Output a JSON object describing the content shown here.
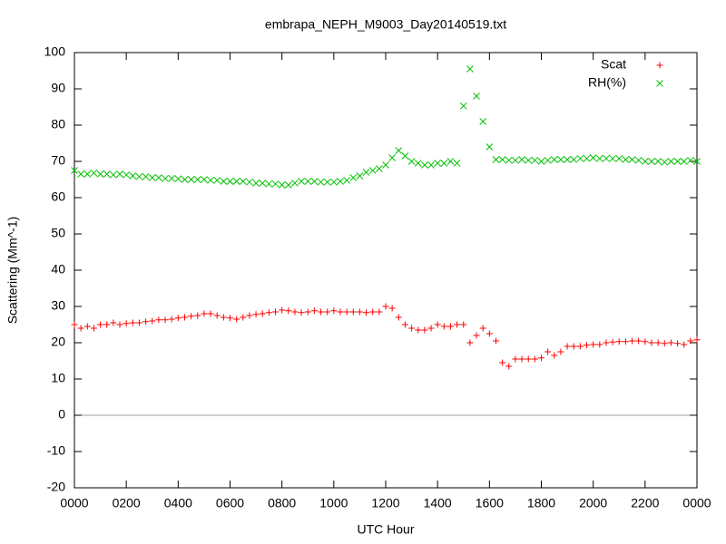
{
  "chart_data": {
    "type": "scatter",
    "title": "embrapa_NEPH_M9003_Day20140519.txt",
    "x_label": "UTC Hour",
    "y_label": "Scattering (Mm^-1)",
    "xlim": [
      0,
      24
    ],
    "ylim": [
      -20,
      100
    ],
    "xticks": [
      {
        "value": 0,
        "label": "0000"
      },
      {
        "value": 2,
        "label": "0200"
      },
      {
        "value": 4,
        "label": "0400"
      },
      {
        "value": 6,
        "label": "0600"
      },
      {
        "value": 8,
        "label": "0800"
      },
      {
        "value": 10,
        "label": "1000"
      },
      {
        "value": 12,
        "label": "1200"
      },
      {
        "value": 14,
        "label": "1400"
      },
      {
        "value": 16,
        "label": "1600"
      },
      {
        "value": 18,
        "label": "1800"
      },
      {
        "value": 20,
        "label": "2000"
      },
      {
        "value": 22,
        "label": "2200"
      },
      {
        "value": 24,
        "label": "0000"
      }
    ],
    "yticks": [
      -20,
      -10,
      0,
      10,
      20,
      30,
      40,
      50,
      60,
      70,
      80,
      90,
      100
    ],
    "legend": "top-right",
    "x": [
      0,
      0.25,
      0.5,
      0.75,
      1,
      1.25,
      1.5,
      1.75,
      2,
      2.25,
      2.5,
      2.75,
      3,
      3.25,
      3.5,
      3.75,
      4,
      4.25,
      4.5,
      4.75,
      5,
      5.25,
      5.5,
      5.75,
      6,
      6.25,
      6.5,
      6.75,
      7,
      7.25,
      7.5,
      7.75,
      8,
      8.25,
      8.5,
      8.75,
      9,
      9.25,
      9.5,
      9.75,
      10,
      10.25,
      10.5,
      10.75,
      11,
      11.25,
      11.5,
      11.75,
      12,
      12.25,
      12.5,
      12.75,
      13,
      13.25,
      13.5,
      13.75,
      14,
      14.25,
      14.5,
      14.75,
      15,
      15.25,
      15.5,
      15.75,
      16,
      16.25,
      16.5,
      16.75,
      17,
      17.25,
      17.5,
      17.75,
      18,
      18.25,
      18.5,
      18.75,
      19,
      19.25,
      19.5,
      19.75,
      20,
      20.25,
      20.5,
      20.75,
      21,
      21.25,
      21.5,
      21.75,
      22,
      22.25,
      22.5,
      22.75,
      23,
      23.25,
      23.5,
      23.75,
      24
    ],
    "series": [
      {
        "name": "Scat",
        "color": "#ff0000",
        "marker": "plus",
        "values": [
          25,
          24,
          24.5,
          24,
          25,
          25,
          25.5,
          25,
          25.3,
          25.5,
          25.5,
          25.8,
          26,
          26.3,
          26.3,
          26.5,
          26.8,
          27,
          27.3,
          27.5,
          28,
          28,
          27.5,
          27,
          26.8,
          26.5,
          27,
          27.5,
          27.8,
          28,
          28.3,
          28.5,
          29,
          28.8,
          28.5,
          28.3,
          28.5,
          28.8,
          28.5,
          28.5,
          28.8,
          28.5,
          28.5,
          28.5,
          28.5,
          28.3,
          28.5,
          28.5,
          30,
          29.5,
          27,
          25,
          24,
          23.5,
          23.5,
          24,
          25,
          24.5,
          24.5,
          25,
          25,
          20,
          22,
          24,
          22.5,
          20.5,
          14.5,
          13.5,
          15.5,
          15.5,
          15.5,
          15.5,
          15.8,
          17.5,
          16.5,
          17.5,
          19,
          19,
          19,
          19.3,
          19.5,
          19.5,
          20,
          20.2,
          20.3,
          20.3,
          20.5,
          20.5,
          20.3,
          20,
          20,
          19.8,
          20,
          19.8,
          19.5,
          20.5,
          20.8
        ]
      },
      {
        "name": "RH(%)",
        "color": "#00c000",
        "marker": "cross",
        "values": [
          67.5,
          66.5,
          66.5,
          66.8,
          66.5,
          66.5,
          66.3,
          66.5,
          66.3,
          66,
          65.8,
          65.8,
          65.5,
          65.5,
          65.3,
          65.3,
          65.2,
          65,
          65,
          65,
          65,
          64.8,
          64.8,
          64.5,
          64.5,
          64.5,
          64.5,
          64.3,
          64,
          64,
          63.8,
          63.8,
          63.5,
          63.5,
          64,
          64.5,
          64.5,
          64.5,
          64.3,
          64.3,
          64.3,
          64.5,
          64.8,
          65.5,
          66,
          67,
          67.5,
          68,
          69,
          71,
          73,
          71.5,
          70,
          69.5,
          69,
          69,
          69.5,
          69.5,
          70,
          69.5,
          85.3,
          95.5,
          88,
          81,
          74,
          70.5,
          70.5,
          70.3,
          70.3,
          70.5,
          70.3,
          70.3,
          70,
          70.3,
          70.5,
          70.5,
          70.5,
          70.5,
          70.8,
          70.8,
          71,
          70.8,
          70.8,
          70.8,
          70.8,
          70.5,
          70.5,
          70.3,
          70,
          70,
          70,
          69.8,
          70,
          70,
          70,
          70.3,
          70
        ]
      }
    ]
  }
}
